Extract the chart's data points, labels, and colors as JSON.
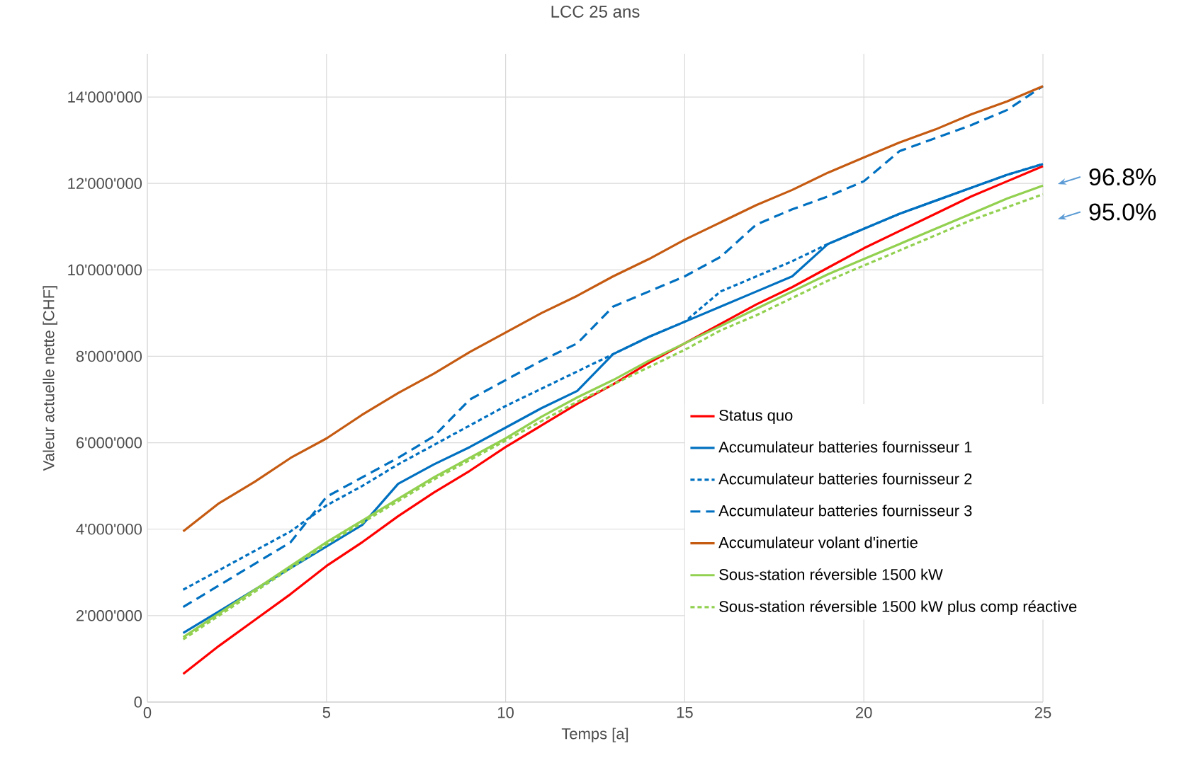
{
  "chart_data": {
    "type": "line",
    "title": "LCC 25 ans",
    "xlabel": "Temps [a]",
    "ylabel": "Valeur actuelle nette [CHF]",
    "x": [
      1,
      2,
      3,
      4,
      5,
      6,
      7,
      8,
      9,
      10,
      11,
      12,
      13,
      14,
      15,
      16,
      17,
      18,
      19,
      20,
      21,
      22,
      23,
      24,
      25
    ],
    "xlim": [
      0,
      25
    ],
    "xticks": [
      0,
      5,
      10,
      15,
      20,
      25
    ],
    "ylim": [
      0,
      15000000
    ],
    "yticks": [
      0,
      {
        "value": 2000000,
        "label": "2'000'000"
      },
      {
        "value": 4000000,
        "label": "4'000'000"
      },
      {
        "value": 6000000,
        "label": "6'000'000"
      },
      {
        "value": 8000000,
        "label": "8'000'000"
      },
      {
        "value": 10000000,
        "label": "10'000'000"
      },
      {
        "value": 12000000,
        "label": "12'000'000"
      },
      {
        "value": 14000000,
        "label": "14'000'000"
      }
    ],
    "grid": true,
    "legend": "bottom right",
    "series": [
      {
        "name": "Status quo",
        "color": "#ff0000",
        "line_style": "solid",
        "values": [
          650000,
          1300000,
          1900000,
          2500000,
          3150000,
          3700000,
          4300000,
          4850000,
          5350000,
          5900000,
          6400000,
          6900000,
          7350000,
          7850000,
          8300000,
          8750000,
          9200000,
          9600000,
          10050000,
          10500000,
          10900000,
          11300000,
          11700000,
          12050000,
          12400000
        ]
      },
      {
        "name": "Accumulateur batteries fournisseur 1",
        "color": "#0070c0",
        "line_style": "solid",
        "values": [
          1600000,
          2100000,
          2600000,
          3100000,
          3600000,
          4100000,
          5050000,
          5500000,
          5900000,
          6350000,
          6800000,
          7200000,
          8050000,
          8450000,
          8800000,
          9150000,
          9500000,
          9850000,
          10600000,
          10950000,
          11300000,
          11600000,
          11900000,
          12200000,
          12450000
        ]
      },
      {
        "name": "Accumulateur batteries fournisseur 2",
        "color": "#0070c0",
        "line_style": "dotted",
        "values": [
          2600000,
          3050000,
          3500000,
          3950000,
          4550000,
          5000000,
          5500000,
          5950000,
          6400000,
          6850000,
          7250000,
          7650000,
          8050000,
          8450000,
          8800000,
          9500000,
          9850000,
          10200000,
          10600000,
          10950000,
          11300000,
          11600000,
          11900000,
          12200000,
          12450000
        ]
      },
      {
        "name": "Accumulateur batteries fournisseur 3",
        "color": "#0070c0",
        "line_style": "dashed",
        "values": [
          2200000,
          2700000,
          3200000,
          3700000,
          4750000,
          5200000,
          5650000,
          6150000,
          7000000,
          7450000,
          7900000,
          8300000,
          9150000,
          9500000,
          9850000,
          10300000,
          11050000,
          11400000,
          11700000,
          12050000,
          12750000,
          13050000,
          13350000,
          13700000,
          14250000
        ]
      },
      {
        "name": "Accumulateur volant d'inertie",
        "color": "#c55a11",
        "line_style": "solid",
        "values": [
          3950000,
          4600000,
          5100000,
          5650000,
          6100000,
          6650000,
          7150000,
          7600000,
          8100000,
          8550000,
          9000000,
          9400000,
          9850000,
          10250000,
          10700000,
          11100000,
          11500000,
          11850000,
          12250000,
          12600000,
          12950000,
          13250000,
          13600000,
          13900000,
          14250000
        ]
      },
      {
        "name": "Sous-station réversible 1500 kW",
        "color": "#92d050",
        "line_style": "solid",
        "values": [
          1500000,
          2050000,
          2600000,
          3150000,
          3700000,
          4200000,
          4700000,
          5200000,
          5650000,
          6100000,
          6600000,
          7050000,
          7450000,
          7900000,
          8300000,
          8700000,
          9100000,
          9500000,
          9900000,
          10250000,
          10600000,
          10950000,
          11300000,
          11650000,
          11950000
        ]
      },
      {
        "name": "Sous-station réversible 1500 kW plus comp réactive",
        "color": "#92d050",
        "line_style": "dotted",
        "values": [
          1450000,
          2000000,
          2550000,
          3100000,
          3650000,
          4150000,
          4650000,
          5150000,
          5600000,
          6050000,
          6500000,
          6950000,
          7350000,
          7750000,
          8150000,
          8600000,
          8950000,
          9350000,
          9750000,
          10100000,
          10450000,
          10800000,
          11150000,
          11450000,
          11750000
        ]
      }
    ],
    "annotations": [
      "96.8%",
      "95.0%"
    ]
  }
}
